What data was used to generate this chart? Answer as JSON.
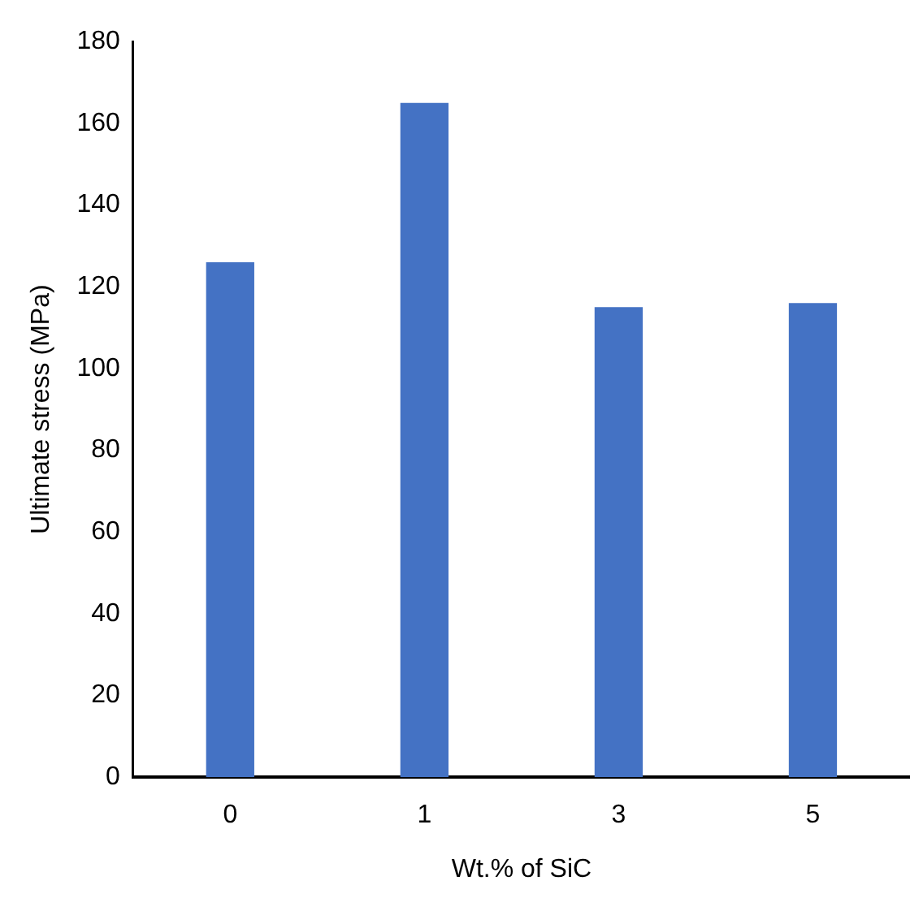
{
  "chart_data": {
    "type": "bar",
    "xlabel": "Wt.% of SiC",
    "ylabel": "Ultimate stress (MPa)",
    "categories": [
      "0",
      "1",
      "3",
      "5"
    ],
    "values": [
      126,
      165,
      115,
      116
    ],
    "color": "#4472c4",
    "ylim": [
      0,
      180
    ],
    "yticks": [
      0,
      20,
      40,
      60,
      80,
      100,
      120,
      140,
      160,
      180
    ],
    "grid": false,
    "legend": false
  }
}
